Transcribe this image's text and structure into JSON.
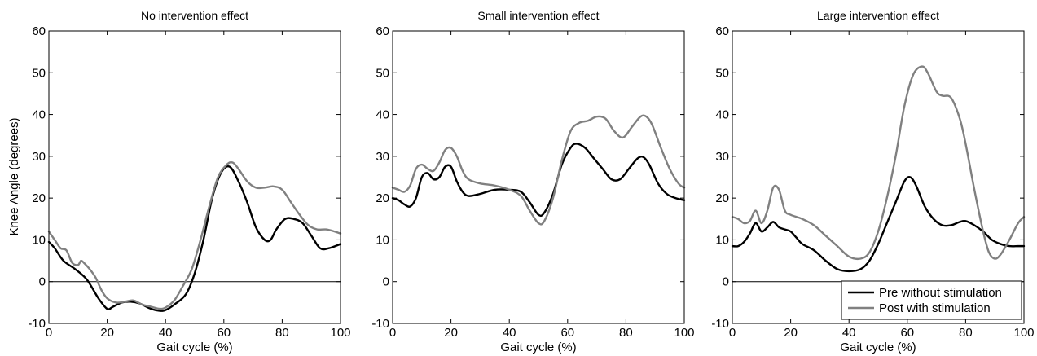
{
  "figure": {
    "ylabel": "Knee Angle (degrees)",
    "xlabel": "Gait cycle (%)"
  },
  "legend": {
    "placement": "bottom-right of third panel",
    "entries": [
      {
        "label": "Pre without stimulation",
        "color": "#000000"
      },
      {
        "label": "Post with stimulation",
        "color": "#808080"
      }
    ]
  },
  "chart_data": [
    {
      "type": "line",
      "title": "No intervention effect",
      "xlabel": "Gait cycle (%)",
      "ylabel": "Knee Angle (degrees)",
      "xlim": [
        0,
        100
      ],
      "ylim": [
        -10,
        60
      ],
      "xticks": [
        0,
        20,
        40,
        60,
        80,
        100
      ],
      "yticks": [
        -10,
        0,
        10,
        20,
        30,
        40,
        50,
        60
      ],
      "zero_line": true,
      "grid": false,
      "series": [
        {
          "name": "Pre without stimulation",
          "color": "#000000",
          "x": [
            0,
            2,
            5,
            9,
            13,
            17,
            20,
            22,
            25,
            28,
            31,
            35,
            38,
            40,
            43,
            47,
            50,
            53,
            56,
            59,
            62,
            65,
            68,
            71,
            74,
            76,
            78,
            81,
            84,
            87,
            90,
            93,
            96,
            100
          ],
          "y": [
            9.5,
            8,
            5,
            3,
            0.5,
            -4,
            -6.5,
            -6,
            -5,
            -4.8,
            -5.2,
            -6.5,
            -7,
            -6.8,
            -5.5,
            -3,
            2,
            10,
            20,
            26,
            27.5,
            24,
            19,
            13,
            10,
            10,
            12.5,
            15,
            15,
            14,
            11,
            8,
            8,
            9
          ]
        },
        {
          "name": "Post with stimulation",
          "color": "#808080",
          "x": [
            0,
            2,
            4,
            6,
            8,
            10,
            11,
            12,
            14,
            16,
            18,
            20,
            23,
            26,
            29,
            32,
            35,
            38,
            40,
            43,
            46,
            49,
            52,
            55,
            58,
            61,
            63,
            65,
            68,
            71,
            74,
            77,
            80,
            83,
            86,
            89,
            92,
            95,
            98,
            100
          ],
          "y": [
            12,
            10,
            8,
            7.5,
            4.5,
            4,
            5,
            4.5,
            3,
            1,
            -2,
            -4,
            -5,
            -4.8,
            -4.5,
            -5.5,
            -6,
            -6.5,
            -6.2,
            -4.5,
            -1,
            3,
            10,
            18,
            25,
            28,
            28.5,
            27,
            24,
            22.5,
            22.5,
            22.8,
            22,
            19,
            16,
            13.5,
            12.5,
            12.5,
            12,
            11.5
          ]
        }
      ]
    },
    {
      "type": "line",
      "title": "Small intervention effect",
      "xlabel": "Gait cycle (%)",
      "ylabel": "",
      "xlim": [
        0,
        100
      ],
      "ylim": [
        -10,
        60
      ],
      "xticks": [
        0,
        20,
        40,
        60,
        80,
        100
      ],
      "yticks": [
        -10,
        0,
        10,
        20,
        30,
        40,
        50,
        60
      ],
      "zero_line": false,
      "grid": false,
      "series": [
        {
          "name": "Pre without stimulation",
          "color": "#000000",
          "x": [
            0,
            2,
            4,
            6,
            8,
            10,
            12,
            14,
            16,
            18,
            20,
            22,
            24,
            26,
            30,
            35,
            40,
            44,
            47,
            50,
            52,
            55,
            58,
            61,
            63,
            66,
            69,
            72,
            75,
            78,
            81,
            84,
            86,
            88,
            91,
            94,
            97,
            100
          ],
          "y": [
            20,
            19.5,
            18.5,
            18,
            20,
            25,
            26,
            24.5,
            25,
            27.5,
            27.5,
            24,
            21.5,
            20.5,
            21,
            22,
            22,
            21.5,
            19,
            16,
            16.5,
            21,
            28,
            32,
            33,
            32,
            29.5,
            27,
            24.5,
            24.5,
            27,
            29.5,
            29.8,
            28,
            23.5,
            21,
            20,
            19.5
          ]
        },
        {
          "name": "Post with stimulation",
          "color": "#808080",
          "x": [
            0,
            2,
            4,
            6,
            8,
            10,
            12,
            14,
            16,
            18,
            20,
            22,
            24,
            26,
            30,
            35,
            40,
            44,
            47,
            50,
            52,
            55,
            58,
            61,
            64,
            67,
            70,
            73,
            76,
            79,
            82,
            85,
            87,
            89,
            92,
            95,
            98,
            100
          ],
          "y": [
            22.5,
            22,
            21.5,
            23,
            27,
            28,
            27,
            26.5,
            28.5,
            31.5,
            32,
            30,
            26.5,
            24.5,
            23.5,
            23,
            22,
            20.5,
            17,
            14,
            14.5,
            20,
            29,
            36,
            38,
            38.5,
            39.5,
            39,
            36,
            34.5,
            37,
            39.5,
            39.5,
            37.5,
            32,
            27,
            23.5,
            22.5
          ]
        }
      ]
    },
    {
      "type": "line",
      "title": "Large intervention effect",
      "xlabel": "Gait cycle (%)",
      "ylabel": "",
      "xlim": [
        0,
        100
      ],
      "ylim": [
        -10,
        60
      ],
      "xticks": [
        0,
        20,
        40,
        60,
        80,
        100
      ],
      "yticks": [
        -10,
        0,
        10,
        20,
        30,
        40,
        50,
        60
      ],
      "zero_line": true,
      "grid": false,
      "series": [
        {
          "name": "Pre without stimulation",
          "color": "#000000",
          "x": [
            0,
            2,
            4,
            6,
            8,
            10,
            12,
            14,
            16,
            18,
            20,
            22,
            24,
            28,
            32,
            36,
            40,
            44,
            47,
            50,
            53,
            56,
            59,
            61,
            63,
            66,
            69,
            72,
            75,
            78,
            80,
            83,
            86,
            89,
            92,
            95,
            98,
            100
          ],
          "y": [
            8.5,
            8.5,
            9.5,
            11.5,
            14,
            12,
            13,
            14.3,
            13,
            12.5,
            12,
            10.5,
            9,
            7.5,
            5,
            3,
            2.5,
            3,
            5,
            9,
            14,
            19,
            24,
            25,
            23,
            18,
            15,
            13.5,
            13.5,
            14.3,
            14.5,
            13.5,
            12,
            10,
            9,
            8.5,
            8.5,
            8.5
          ]
        },
        {
          "name": "Post with stimulation",
          "color": "#808080",
          "x": [
            0,
            2,
            4,
            6,
            8,
            10,
            12,
            14,
            16,
            18,
            20,
            24,
            28,
            32,
            36,
            40,
            44,
            47,
            50,
            53,
            56,
            59,
            62,
            65,
            67,
            70,
            72,
            75,
            78,
            80,
            83,
            86,
            88,
            90,
            92,
            95,
            98,
            100
          ],
          "y": [
            15.5,
            15,
            14,
            14.5,
            17,
            14,
            17,
            22.5,
            22,
            17,
            16,
            15,
            13.5,
            11,
            8.5,
            6,
            5.5,
            7,
            12,
            20,
            30,
            42,
            49.5,
            51.5,
            50,
            45.5,
            44.5,
            44,
            39,
            33,
            22,
            12,
            7,
            5.5,
            6.5,
            10,
            14,
            15.5
          ]
        }
      ]
    }
  ]
}
